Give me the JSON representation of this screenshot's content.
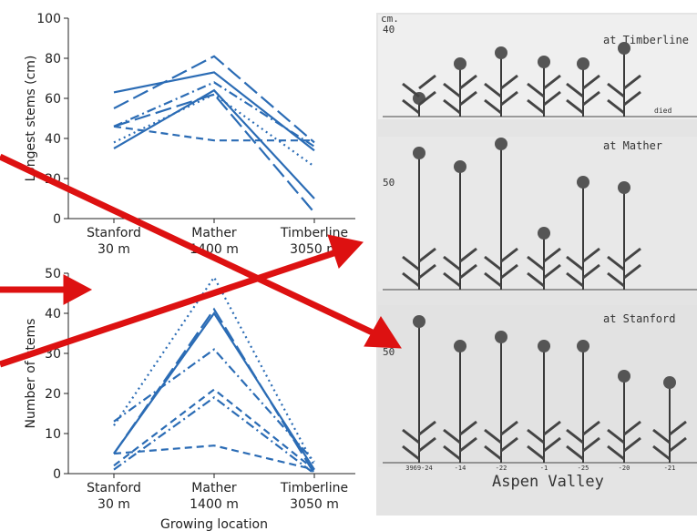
{
  "chart_data": [
    {
      "type": "line",
      "y_label": "Longest stems (cm)",
      "categories": [
        "Stanford",
        "Mather",
        "Timberline"
      ],
      "category_elevations": [
        "30 m",
        "1400 m",
        "3050 m"
      ],
      "ylim": [
        0,
        100
      ],
      "yticks": [
        0,
        20,
        40,
        60,
        80,
        100
      ],
      "series": [
        {
          "color": "#2b6cb5",
          "style": "solid",
          "values": [
            63,
            73,
            34
          ]
        },
        {
          "color": "#2b6cb5",
          "style": "longdash",
          "values": [
            55,
            81,
            38
          ]
        },
        {
          "color": "#2b6cb5",
          "style": "dashed",
          "values": [
            46,
            39,
            39
          ]
        },
        {
          "color": "#2b6cb5",
          "style": "dashdot",
          "values": [
            46,
            68,
            36
          ]
        },
        {
          "color": "#2b6cb5",
          "style": "dotted",
          "values": [
            38,
            62,
            26
          ]
        },
        {
          "color": "#2b6cb5",
          "style": "solid",
          "values": [
            35,
            64,
            10
          ]
        },
        {
          "color": "#2b6cb5",
          "style": "longdash",
          "values": [
            46,
            62,
            3
          ]
        }
      ]
    },
    {
      "type": "line",
      "y_label": "Number of stems",
      "x_label": "Growing location",
      "categories": [
        "Stanford",
        "Mather",
        "Timberline"
      ],
      "category_elevations": [
        "30 m",
        "1400 m",
        "3050 m"
      ],
      "ylim": [
        0,
        50
      ],
      "yticks": [
        0,
        10,
        20,
        30,
        40,
        50
      ],
      "series": [
        {
          "color": "#2b6cb5",
          "style": "solid",
          "values": [
            5,
            40,
            1
          ]
        },
        {
          "color": "#2b6cb5",
          "style": "longdash",
          "values": [
            5,
            41,
            0
          ]
        },
        {
          "color": "#2b6cb5",
          "style": "dashed",
          "values": [
            5,
            7,
            1
          ]
        },
        {
          "color": "#2b6cb5",
          "style": "dashdot",
          "values": [
            13,
            31,
            3
          ]
        },
        {
          "color": "#2b6cb5",
          "style": "dotted",
          "values": [
            12,
            49,
            2
          ]
        },
        {
          "color": "#2b6cb5",
          "style": "dashed",
          "values": [
            2,
            21,
            1
          ]
        },
        {
          "color": "#2b6cb5",
          "style": "dashdot",
          "values": [
            1,
            19,
            0
          ]
        }
      ]
    }
  ],
  "photo": {
    "unit": "cm.",
    "scale_marks": [
      "40",
      "50",
      "50"
    ],
    "panels": [
      "at Timberline",
      "at Mather",
      "at Stanford"
    ],
    "died": "died",
    "plant_ids": [
      "3969-24",
      "-14",
      "-22",
      "-1",
      "-25",
      "-20",
      "-21"
    ],
    "caption": "Aspen Valley"
  }
}
